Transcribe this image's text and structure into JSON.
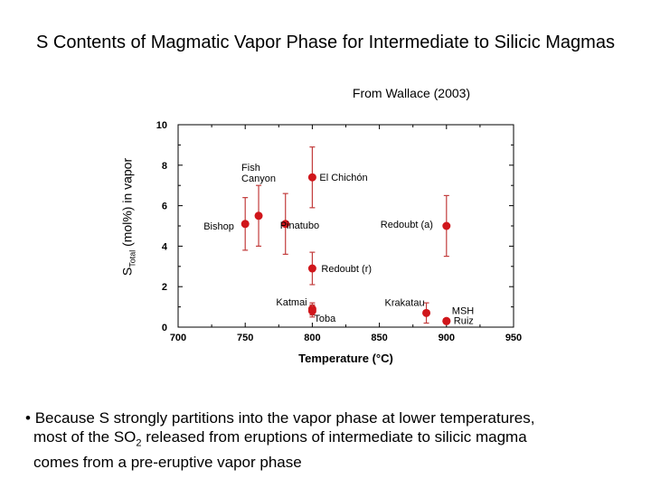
{
  "title": "S Contents of Magmatic Vapor Phase for Intermediate to Silicic Magmas",
  "source_note": "From Wallace (2003)",
  "ylabel": {
    "main": "S",
    "sub": "Total",
    "rest": " (mol%) in vapor"
  },
  "bullet": {
    "marker": "•",
    "line1": "Because S strongly partitions into the vapor phase at lower temperatures,",
    "line2_pre": "most of the SO",
    "line2_sub": "2",
    "line2_post": " released from eruptions of intermediate to silicic magma",
    "line3": "comes from a pre-eruptive vapor phase"
  },
  "colors": {
    "point": "#d0161b",
    "errorbar": "#c23c3c"
  },
  "chart_data": {
    "type": "scatter",
    "title": "",
    "xlabel": "Temperature (°C)",
    "ylabel": "S_Total (mol%) in vapor",
    "xlim": [
      700,
      950
    ],
    "ylim": [
      0,
      10
    ],
    "xticks": [
      700,
      750,
      800,
      850,
      900,
      950
    ],
    "yticks": [
      0,
      2,
      4,
      6,
      8,
      10
    ],
    "points": [
      {
        "label": "Bishop",
        "x": 750,
        "y": 5.1,
        "err": 1.3
      },
      {
        "label": "Fish Canyon",
        "x": 760,
        "y": 5.5,
        "err": 1.5
      },
      {
        "label": "Pinatubo",
        "x": 780,
        "y": 5.1,
        "err": 1.5
      },
      {
        "label": "El Chichón",
        "x": 800,
        "y": 7.4,
        "err": 1.5
      },
      {
        "label": "Redoubt (a)",
        "x": 900,
        "y": 5.0,
        "err": 1.5
      },
      {
        "label": "Redoubt (r)",
        "x": 800,
        "y": 2.9,
        "err": 0.8
      },
      {
        "label": "Katmai",
        "x": 800,
        "y": 0.9,
        "err": 0.3
      },
      {
        "label": "Toba",
        "x": 800,
        "y": 0.8,
        "err": 0.3
      },
      {
        "label": "Krakatau",
        "x": 885,
        "y": 0.7,
        "err": 0.5
      },
      {
        "label": "MSH",
        "x": 900,
        "y": 0.3,
        "err": 0.0
      },
      {
        "label": "Ruiz",
        "x": 900,
        "y": 0.3,
        "err": 0.0
      }
    ]
  }
}
